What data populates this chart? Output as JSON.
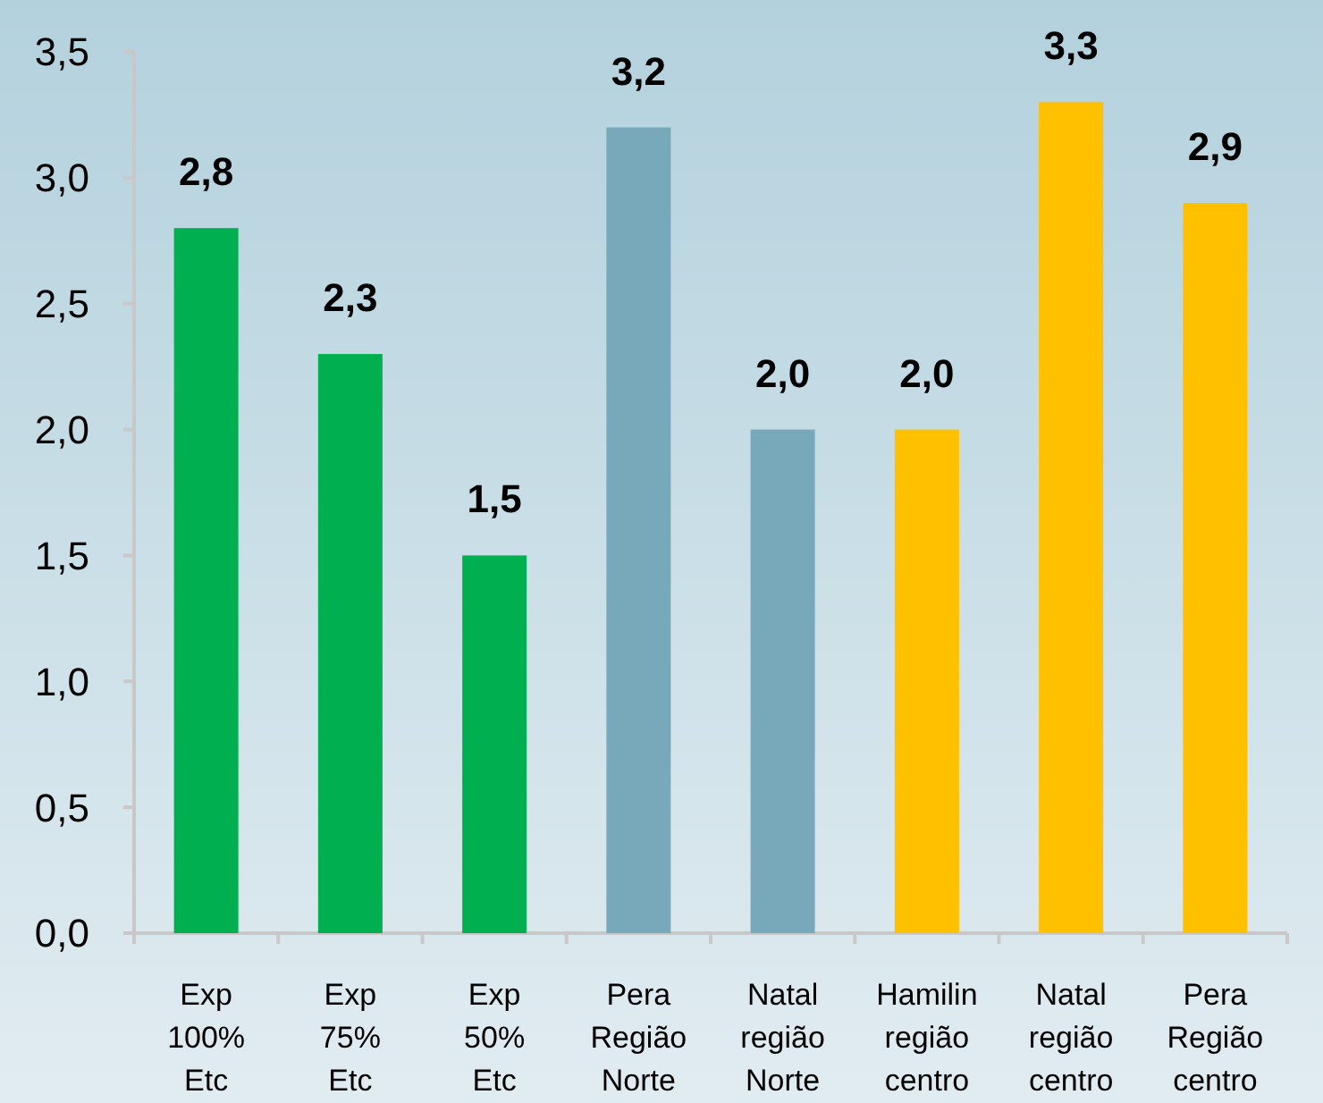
{
  "chart_data": {
    "type": "bar",
    "categories": [
      "Exp 100% Etc",
      "Exp 75% Etc",
      "Exp 50% Etc",
      "Pera Região Norte",
      "Natal região Norte",
      "Hamilin região centro",
      "Natal região centro",
      "Pera Região centro"
    ],
    "values": [
      2.8,
      2.3,
      1.5,
      3.2,
      2.0,
      2.0,
      3.3,
      2.9
    ],
    "colors": [
      "#00b050",
      "#00b050",
      "#00b050",
      "#78a9bb",
      "#78a9bb",
      "#ffc000",
      "#ffc000",
      "#ffc000"
    ],
    "value_labels": [
      "2,8",
      "2,3",
      "1,5",
      "3,2",
      "2,0",
      "2,0",
      "3,3",
      "2,9"
    ],
    "ylim": [
      0,
      3.5
    ],
    "yticks": [
      {
        "value": 0,
        "label": "0,0"
      },
      {
        "value": 0.5,
        "label": "0,5"
      },
      {
        "value": 1,
        "label": "1,0"
      },
      {
        "value": 1.5,
        "label": "1,5"
      },
      {
        "value": 2,
        "label": "2,0"
      },
      {
        "value": 2.5,
        "label": "2,5"
      },
      {
        "value": 3,
        "label": "3,0"
      },
      {
        "value": 3.5,
        "label": "3,5"
      }
    ]
  }
}
